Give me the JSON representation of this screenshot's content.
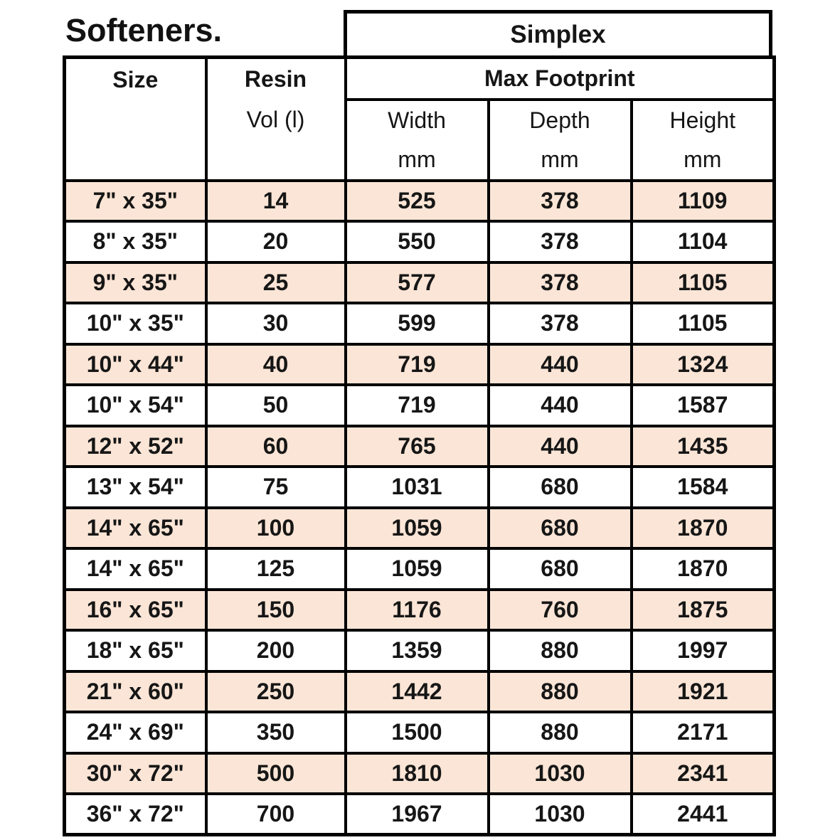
{
  "page": {
    "title": "Softeners."
  },
  "table": {
    "simplex_label": "Simplex",
    "header": {
      "size": "Size",
      "resin": "Resin",
      "resin_unit": "Vol (l)",
      "max_footprint": "Max Footprint",
      "width": "Width",
      "depth": "Depth",
      "height": "Height",
      "unit_mm": "mm"
    },
    "row_shade_color": "#fbe5d6",
    "rows": [
      {
        "size": "7\" x 35\"",
        "resin_vol": "14",
        "width_mm": "525",
        "depth_mm": "378",
        "height_mm": "1109"
      },
      {
        "size": "8\" x 35\"",
        "resin_vol": "20",
        "width_mm": "550",
        "depth_mm": "378",
        "height_mm": "1104"
      },
      {
        "size": "9\" x 35\"",
        "resin_vol": "25",
        "width_mm": "577",
        "depth_mm": "378",
        "height_mm": "1105"
      },
      {
        "size": "10\" x 35\"",
        "resin_vol": "30",
        "width_mm": "599",
        "depth_mm": "378",
        "height_mm": "1105"
      },
      {
        "size": "10\" x 44\"",
        "resin_vol": "40",
        "width_mm": "719",
        "depth_mm": "440",
        "height_mm": "1324"
      },
      {
        "size": "10\" x 54\"",
        "resin_vol": "50",
        "width_mm": "719",
        "depth_mm": "440",
        "height_mm": "1587"
      },
      {
        "size": "12\" x 52\"",
        "resin_vol": "60",
        "width_mm": "765",
        "depth_mm": "440",
        "height_mm": "1435"
      },
      {
        "size": "13\" x 54\"",
        "resin_vol": "75",
        "width_mm": "1031",
        "depth_mm": "680",
        "height_mm": "1584"
      },
      {
        "size": "14\" x 65\"",
        "resin_vol": "100",
        "width_mm": "1059",
        "depth_mm": "680",
        "height_mm": "1870"
      },
      {
        "size": "14\" x 65\"",
        "resin_vol": "125",
        "width_mm": "1059",
        "depth_mm": "680",
        "height_mm": "1870"
      },
      {
        "size": "16\" x 65\"",
        "resin_vol": "150",
        "width_mm": "1176",
        "depth_mm": "760",
        "height_mm": "1875"
      },
      {
        "size": "18\" x 65\"",
        "resin_vol": "200",
        "width_mm": "1359",
        "depth_mm": "880",
        "height_mm": "1997"
      },
      {
        "size": "21\" x 60\"",
        "resin_vol": "250",
        "width_mm": "1442",
        "depth_mm": "880",
        "height_mm": "1921"
      },
      {
        "size": "24\" x 69\"",
        "resin_vol": "350",
        "width_mm": "1500",
        "depth_mm": "880",
        "height_mm": "2171"
      },
      {
        "size": "30\" x 72\"",
        "resin_vol": "500",
        "width_mm": "1810",
        "depth_mm": "1030",
        "height_mm": "2341"
      },
      {
        "size": "36\" x 72\"",
        "resin_vol": "700",
        "width_mm": "1967",
        "depth_mm": "1030",
        "height_mm": "2441"
      }
    ]
  }
}
